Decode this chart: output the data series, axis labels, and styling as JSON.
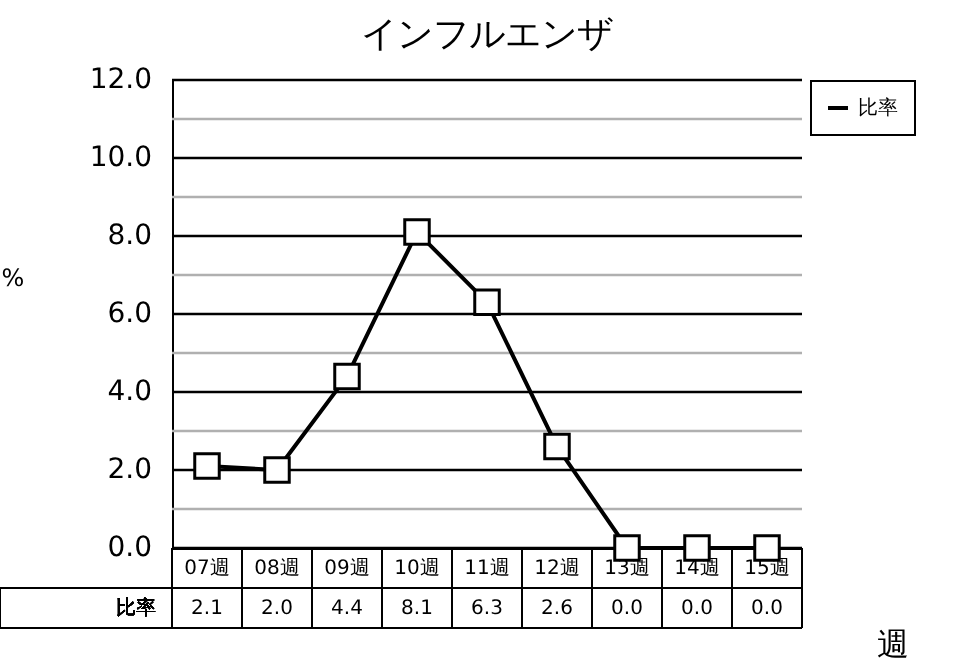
{
  "chart_data": {
    "type": "line",
    "title": "インフルエンザ",
    "xlabel": "週",
    "ylabel": "%",
    "categories": [
      "07週",
      "08週",
      "09週",
      "10週",
      "11週",
      "12週",
      "13週",
      "14週",
      "15週"
    ],
    "series": [
      {
        "name": "比率",
        "color": "#000000",
        "values": [
          2.1,
          2.0,
          4.4,
          8.1,
          6.3,
          2.6,
          0.0,
          0.0,
          0.0
        ],
        "value_labels": [
          "2.1",
          "2.0",
          "4.4",
          "8.1",
          "6.3",
          "2.6",
          "0.0",
          "0.0",
          "0.0"
        ]
      }
    ],
    "ylim": [
      0,
      12
    ],
    "yticks": [
      {
        "value": 0,
        "label": "0.0"
      },
      {
        "value": 1,
        "label": null
      },
      {
        "value": 2,
        "label": "2.0"
      },
      {
        "value": 3,
        "label": null
      },
      {
        "value": 4,
        "label": "4.0"
      },
      {
        "value": 5,
        "label": null
      },
      {
        "value": 6,
        "label": "6.0"
      },
      {
        "value": 7,
        "label": null
      },
      {
        "value": 8,
        "label": "8.0"
      },
      {
        "value": 9,
        "label": null
      },
      {
        "value": 10,
        "label": "10.0"
      },
      {
        "value": 11,
        "label": null
      },
      {
        "value": 12,
        "label": "12.0"
      }
    ],
    "grid": "y",
    "legend": "right",
    "marker": "square",
    "line_style": "solid"
  }
}
